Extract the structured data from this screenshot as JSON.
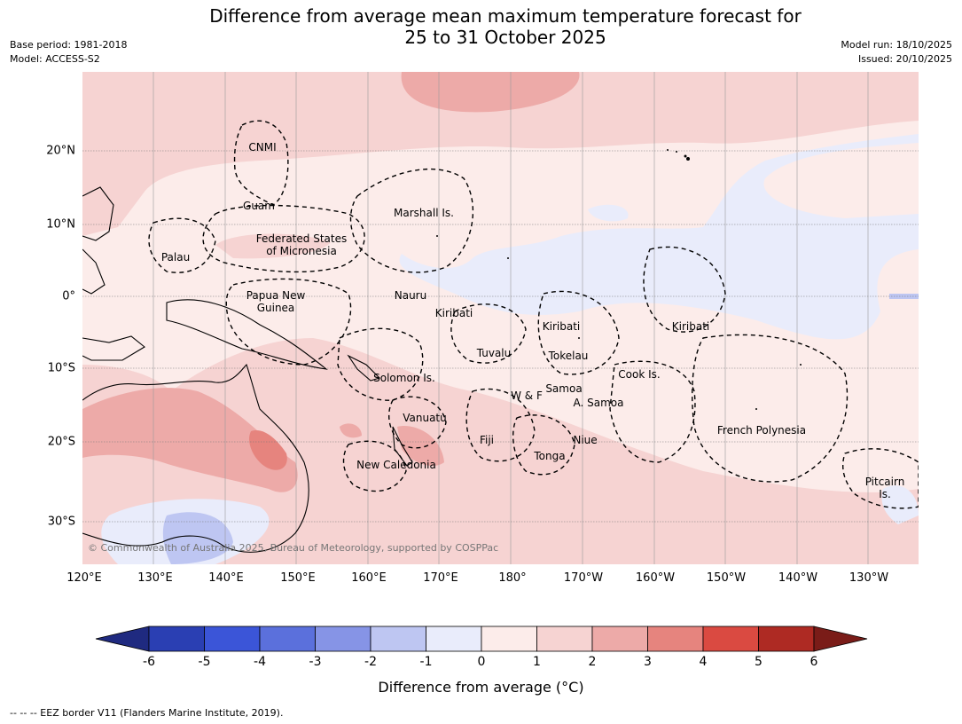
{
  "header": {
    "title_line1": "Difference from average mean maximum temperature forecast for",
    "title_line2": "25 to 31 October 2025",
    "base_period": "Base period: 1981-2018",
    "model": "Model: ACCESS-S2",
    "model_run": "Model run: 18/10/2025",
    "issued": "Issued: 20/10/2025"
  },
  "map": {
    "copyright": "© Commonwealth of Australia 2025, Bureau of Meteorology, supported by COSPPac",
    "lon_ticks": [
      "120°E",
      "130°E",
      "140°E",
      "150°E",
      "160°E",
      "170°E",
      "180°",
      "170°W",
      "160°W",
      "150°W",
      "140°W",
      "130°W"
    ],
    "lat_ticks": [
      "20°N",
      "10°N",
      "0°",
      "10°S",
      "20°S",
      "30°S"
    ],
    "regions": [
      "CNMI",
      "Guam",
      "Marshall Is.",
      "Federated States",
      "of Micronesia",
      "Palau",
      "Papua New",
      "Guinea",
      "Nauru",
      "Kiribati",
      "Kiribati",
      "Kiribati",
      "Tuvalu",
      "Tokelau",
      "Solomon Is.",
      "Cook Is.",
      "Samoa",
      "W & F",
      "A. Samoa",
      "Vanuatu",
      "Fiji",
      "Niue",
      "French Polynesia",
      "Tonga",
      "New Caledonia",
      "Pitcairn",
      "Is."
    ]
  },
  "colorbar": {
    "ticks": [
      "-6",
      "-5",
      "-4",
      "-3",
      "-2",
      "-1",
      "0",
      "1",
      "2",
      "3",
      "4",
      "5",
      "6"
    ],
    "colors": [
      "#1f2a80",
      "#2a3fb3",
      "#3b55d8",
      "#5b70dc",
      "#8694e6",
      "#bec6f2",
      "#e9ecfb",
      "#fcecea",
      "#f6d3d2",
      "#edaaa8",
      "#e6847e",
      "#da4a41",
      "#ae2a23",
      "#7a1c18"
    ],
    "label": "Difference from average (°C)"
  },
  "footer": {
    "note": "-- -- -- EEZ border V11 (Flanders Marine Institute, 2019)."
  }
}
